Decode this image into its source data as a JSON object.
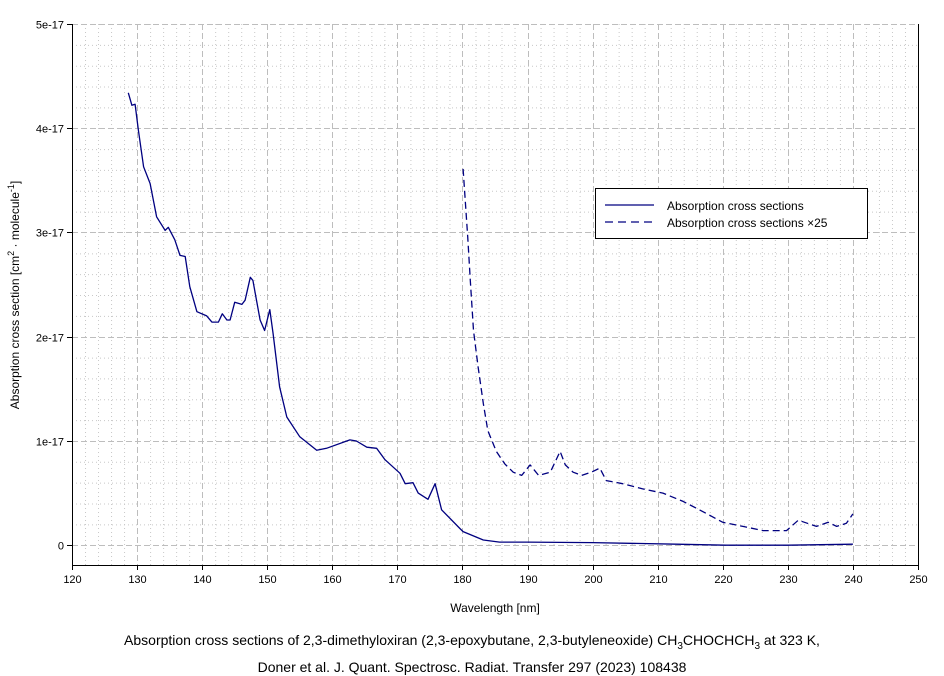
{
  "chart_data": {
    "type": "line",
    "xlabel": "Wavelength [nm]",
    "ylabel": {
      "pre": "Absorption cross section [cm",
      "sup1": "2",
      "mid": " · molecule",
      "sup2": "-1",
      "post": "]"
    },
    "xlim": [
      120,
      250
    ],
    "ylim": [
      -1.9e-18,
      5e-17
    ],
    "x_ticks": [
      120,
      130,
      140,
      150,
      160,
      170,
      180,
      190,
      200,
      210,
      220,
      230,
      240,
      250
    ],
    "x_tick_labels": [
      "120",
      "130",
      "140",
      "150",
      "160",
      "170",
      "180",
      "190",
      "200",
      "210",
      "220",
      "230",
      "240",
      "250"
    ],
    "y_ticks": [
      0,
      1e-17,
      2e-17,
      3e-17,
      4e-17,
      5e-17
    ],
    "y_tick_labels": [
      "0",
      "1e-17",
      "2e-17",
      "3e-17",
      "4e-17",
      "5e-17"
    ],
    "x_minor_step": 2,
    "y_minor_step": 2e-18,
    "grid": true,
    "legend_placement": "upper-right",
    "color": "#000080",
    "series": [
      {
        "name": "Absorption cross sections",
        "style": "solid",
        "x": [
          128.65,
          129.2,
          129.7,
          130.2,
          131.0,
          132.0,
          133.0,
          134.3,
          134.8,
          135.8,
          136.6,
          137.4,
          138.1,
          139.2,
          140.7,
          141.5,
          142.5,
          143.1,
          143.8,
          144.3,
          145.0,
          146.1,
          146.6,
          147.4,
          147.8,
          148.9,
          149.6,
          150.4,
          150.9,
          151.9,
          153.0,
          155.0,
          157.6,
          159.1,
          162.7,
          163.7,
          165.3,
          166.8,
          168.1,
          170.4,
          171.2,
          172.4,
          173.2,
          174.7,
          175.8,
          176.8,
          179.6,
          180.1,
          183.2,
          185.7,
          190,
          200,
          212.9,
          220.5,
          230,
          240
        ],
        "y": [
          4.34e-17,
          4.22e-17,
          4.23e-17,
          3.98e-17,
          3.63e-17,
          3.47e-17,
          3.15e-17,
          3.02e-17,
          3.05e-17,
          2.93e-17,
          2.78e-17,
          2.77e-17,
          2.48e-17,
          2.24e-17,
          2.2e-17,
          2.14e-17,
          2.14e-17,
          2.22e-17,
          2.16e-17,
          2.16e-17,
          2.33e-17,
          2.31e-17,
          2.35e-17,
          2.57e-17,
          2.54e-17,
          2.16e-17,
          2.06e-17,
          2.26e-17,
          2.03e-17,
          1.52e-17,
          1.23e-17,
          1.04e-17,
          9.1e-18,
          9.3e-18,
          1.01e-17,
          1e-17,
          9.4e-18,
          9.3e-18,
          8.2e-18,
          6.9e-18,
          5.9e-18,
          6e-18,
          5e-18,
          4.4e-18,
          5.9e-18,
          3.4e-18,
          1.6e-18,
          1.3e-18,
          5e-19,
          3e-19,
          3e-19,
          2.5e-19,
          1e-19,
          0.0,
          0.0,
          1e-19
        ]
      },
      {
        "name": "Absorption cross sections ×25",
        "style": "dashed",
        "x": [
          180.1,
          180.8,
          181.2,
          181.7,
          182.4,
          183.2,
          183.9,
          185.2,
          186.5,
          187.8,
          189.1,
          190.4,
          191.7,
          193.5,
          195.0,
          195.8,
          197.0,
          198.3,
          199.8,
          201.1,
          202.1,
          204.6,
          207.7,
          210.8,
          213.9,
          217.0,
          220.0,
          223.1,
          226.2,
          229.8,
          231.6,
          234.4,
          236.2,
          237.5,
          239.0,
          240.0
        ],
        "y": [
          3.61e-17,
          2.96e-17,
          2.54e-17,
          2.06e-17,
          1.71e-17,
          1.36e-17,
          1.1e-17,
          9e-18,
          7.8e-18,
          7e-18,
          6.7e-18,
          7.7e-18,
          6.7e-18,
          7e-18,
          9e-18,
          7.7e-18,
          7e-18,
          6.7e-18,
          7e-18,
          7.4e-18,
          6.2e-18,
          5.9e-18,
          5.4e-18,
          5e-18,
          4.2e-18,
          3.2e-18,
          2.2e-18,
          1.8e-18,
          1.4e-18,
          1.4e-18,
          2.4e-18,
          1.8e-18,
          2.2e-18,
          1.8e-18,
          2.1e-18,
          3e-18
        ]
      }
    ]
  },
  "caption": {
    "line1_pre": "Absorption cross sections of 2,3-dimethyloxiran (2,3-epoxybutane, 2,3-butyleneoxide) CH",
    "sub1": "3",
    "line1_mid": "CHOCHCH",
    "sub2": "3",
    "line1_post": " at 323 K,",
    "line2": "Doner et al. J. Quant. Spectrosc. Radiat. Transfer 297 (2023) 108438"
  }
}
